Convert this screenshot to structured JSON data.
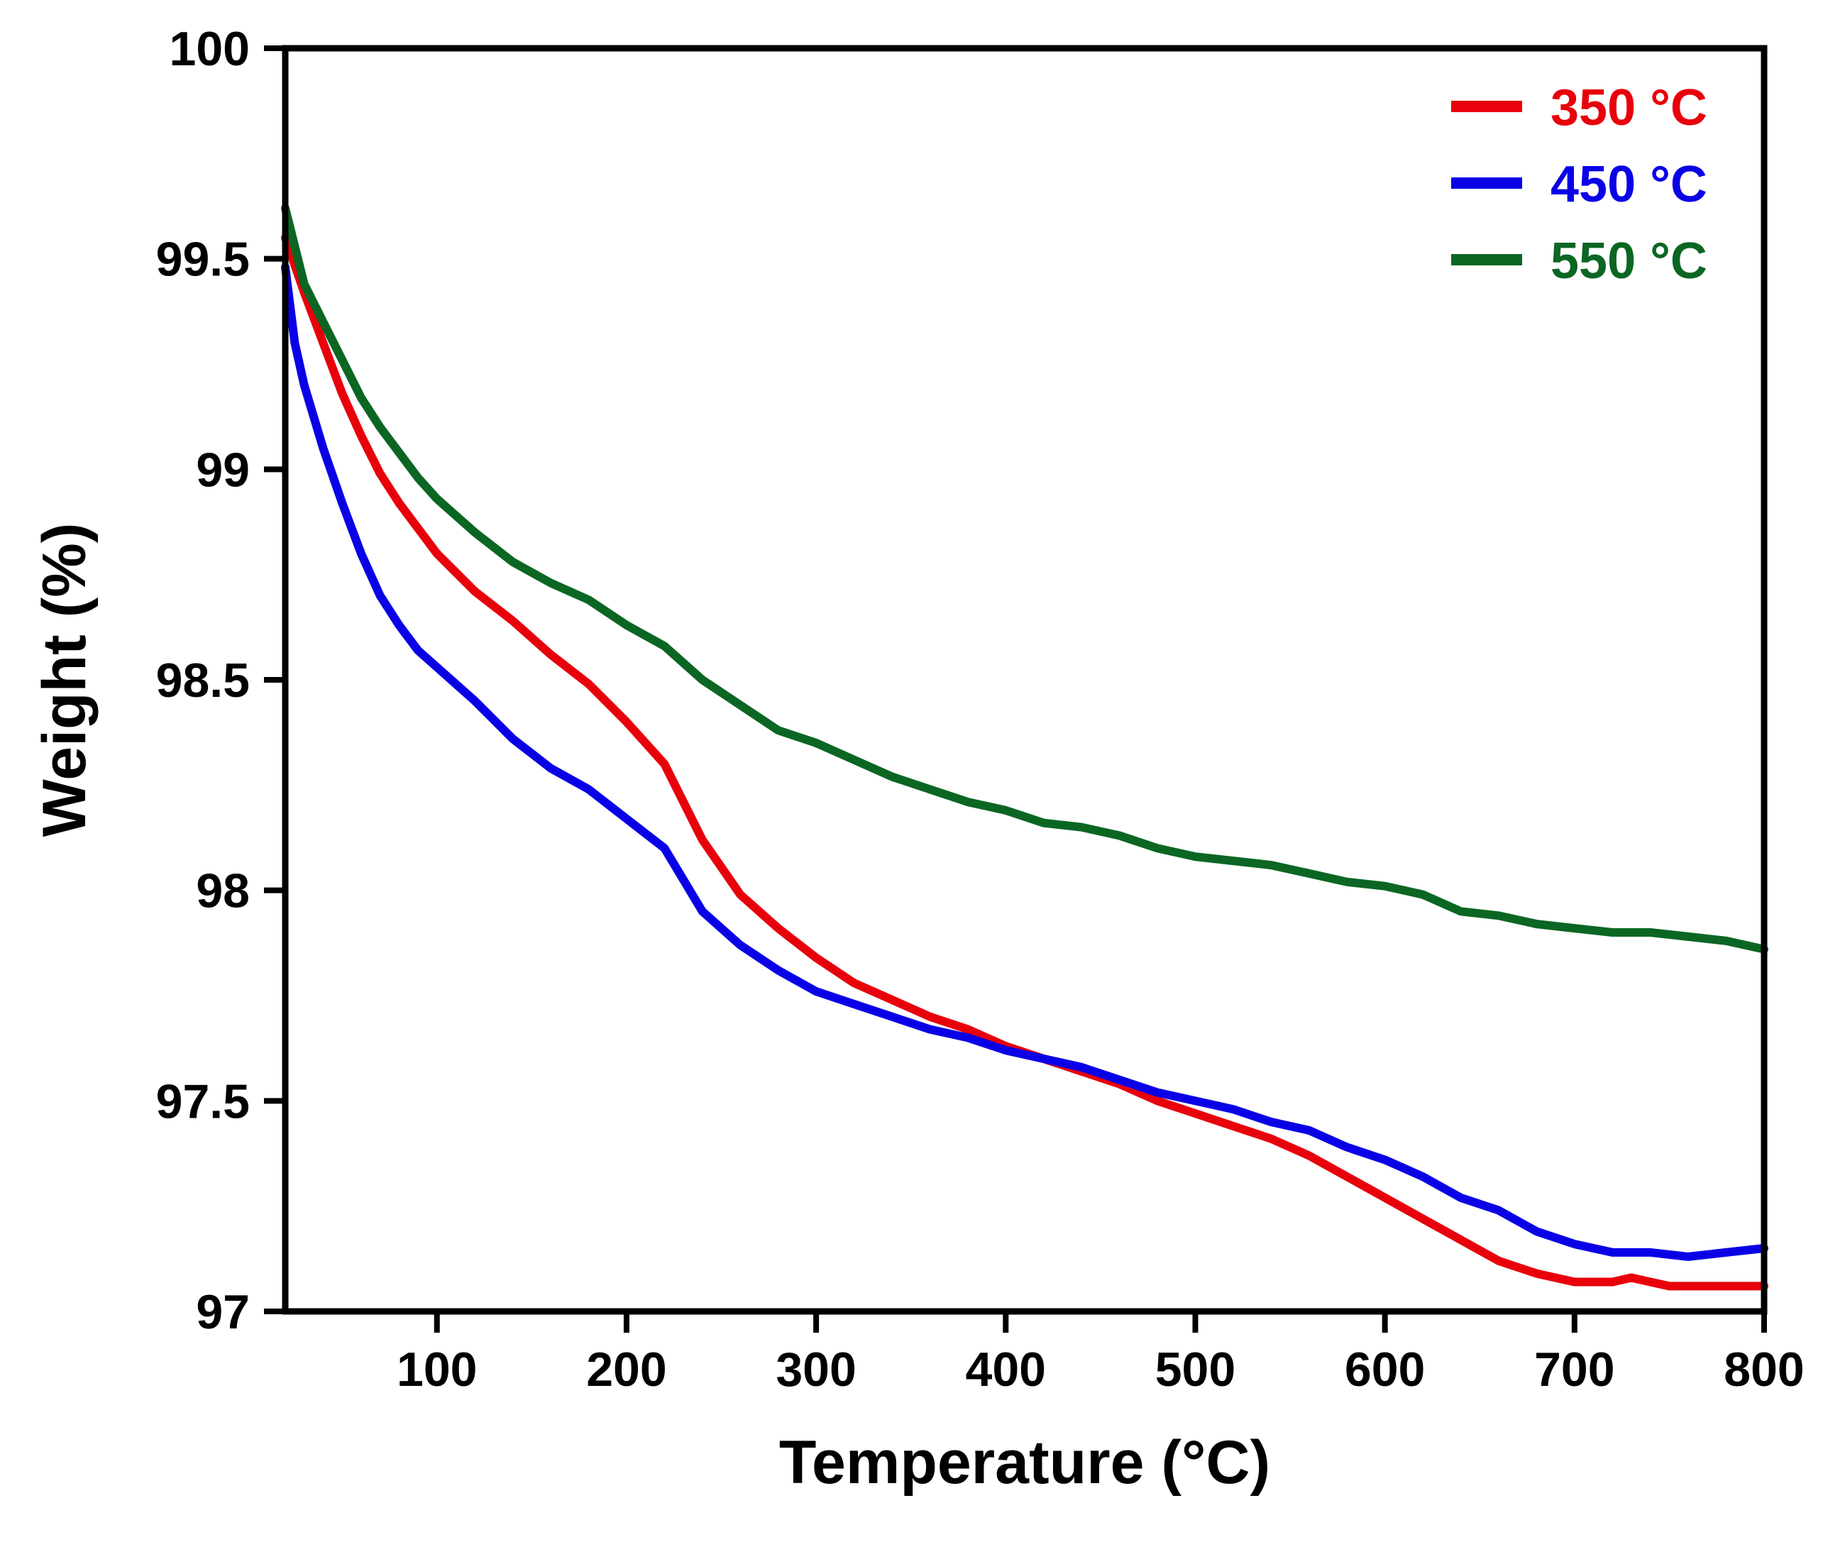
{
  "chart_data": {
    "type": "line",
    "title": "",
    "xlabel": "Temperature (°C)",
    "ylabel": "Weight (%)",
    "xlim": [
      20,
      800
    ],
    "ylim": [
      97,
      100
    ],
    "x_ticks": [
      100,
      200,
      300,
      400,
      500,
      600,
      700,
      800
    ],
    "x_tick_labels": [
      "100",
      "200",
      "300",
      "400",
      "500",
      "600",
      "700",
      "800"
    ],
    "y_ticks": [
      97,
      97.5,
      98,
      98.5,
      99,
      99.5,
      100
    ],
    "y_tick_labels": [
      "97",
      "97.5",
      "98",
      "98.5",
      "99",
      "99.5",
      "100"
    ],
    "grid": false,
    "legend_position": "top-right",
    "series": [
      {
        "name": "350 °C",
        "color": "#e8000b",
        "x": [
          20,
          30,
          40,
          50,
          60,
          70,
          80,
          90,
          100,
          120,
          140,
          160,
          180,
          200,
          220,
          240,
          260,
          280,
          300,
          320,
          340,
          360,
          380,
          400,
          420,
          440,
          460,
          480,
          500,
          520,
          540,
          560,
          580,
          600,
          620,
          640,
          660,
          680,
          700,
          720,
          730,
          740,
          750,
          760,
          780,
          800
        ],
        "values": [
          99.55,
          99.42,
          99.3,
          99.18,
          99.08,
          98.99,
          98.92,
          98.86,
          98.8,
          98.71,
          98.64,
          98.56,
          98.49,
          98.4,
          98.3,
          98.12,
          97.99,
          97.91,
          97.84,
          97.78,
          97.74,
          97.7,
          97.67,
          97.63,
          97.6,
          97.57,
          97.54,
          97.5,
          97.47,
          97.44,
          97.41,
          97.37,
          97.32,
          97.27,
          97.22,
          97.17,
          97.12,
          97.09,
          97.07,
          97.07,
          97.08,
          97.07,
          97.06,
          97.06,
          97.06,
          97.06
        ]
      },
      {
        "name": "450 °C",
        "color": "#0a00e6",
        "x": [
          20,
          25,
          30,
          40,
          50,
          60,
          70,
          80,
          90,
          100,
          120,
          140,
          160,
          180,
          200,
          220,
          240,
          260,
          280,
          300,
          320,
          340,
          360,
          380,
          400,
          420,
          440,
          460,
          480,
          500,
          520,
          540,
          560,
          580,
          600,
          620,
          640,
          660,
          680,
          700,
          720,
          740,
          760,
          780,
          800
        ],
        "values": [
          99.48,
          99.3,
          99.2,
          99.05,
          98.92,
          98.8,
          98.7,
          98.63,
          98.57,
          98.53,
          98.45,
          98.36,
          98.29,
          98.24,
          98.17,
          98.1,
          97.95,
          97.87,
          97.81,
          97.76,
          97.73,
          97.7,
          97.67,
          97.65,
          97.62,
          97.6,
          97.58,
          97.55,
          97.52,
          97.5,
          97.48,
          97.45,
          97.43,
          97.39,
          97.36,
          97.32,
          97.27,
          97.24,
          97.19,
          97.16,
          97.14,
          97.14,
          97.13,
          97.14,
          97.15
        ]
      },
      {
        "name": "550 °C",
        "color": "#0b6623",
        "x": [
          20,
          30,
          40,
          50,
          60,
          70,
          80,
          90,
          100,
          120,
          140,
          160,
          180,
          200,
          220,
          240,
          260,
          280,
          300,
          320,
          340,
          360,
          380,
          400,
          420,
          440,
          460,
          480,
          500,
          520,
          540,
          560,
          580,
          600,
          620,
          640,
          660,
          680,
          700,
          720,
          740,
          760,
          780,
          800
        ],
        "values": [
          99.62,
          99.44,
          99.35,
          99.26,
          99.17,
          99.1,
          99.04,
          98.98,
          98.93,
          98.85,
          98.78,
          98.73,
          98.69,
          98.63,
          98.58,
          98.5,
          98.44,
          98.38,
          98.35,
          98.31,
          98.27,
          98.24,
          98.21,
          98.19,
          98.16,
          98.15,
          98.13,
          98.1,
          98.08,
          98.07,
          98.06,
          98.04,
          98.02,
          98.01,
          97.99,
          97.95,
          97.94,
          97.92,
          97.91,
          97.9,
          97.9,
          97.89,
          97.88,
          97.86
        ]
      }
    ]
  }
}
